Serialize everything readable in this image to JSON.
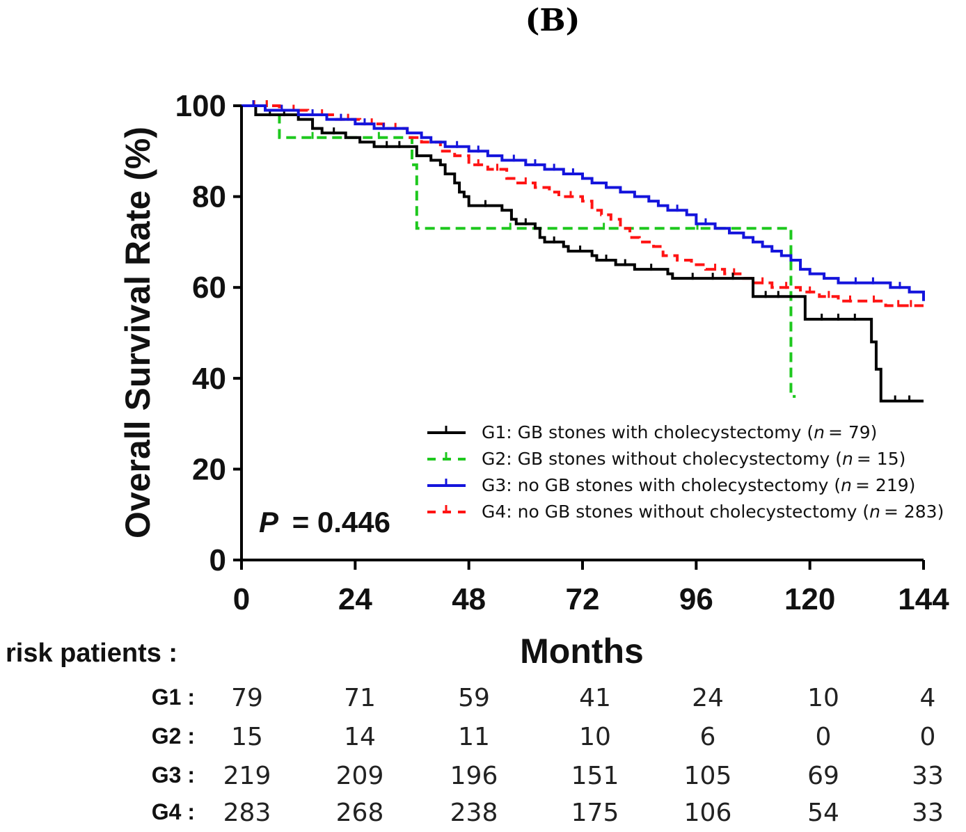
{
  "panel_label": "(B)",
  "chart_data": {
    "type": "line",
    "subtype": "kaplan-meier",
    "ylabel": "Overall Survival Rate (%)",
    "xlabel": "Months",
    "xlim": [
      0,
      144
    ],
    "ylim": [
      0,
      100
    ],
    "xticks": [
      0,
      24,
      48,
      72,
      96,
      120,
      144
    ],
    "yticks": [
      0,
      20,
      40,
      60,
      80,
      100
    ],
    "xtick_labels": [
      "0",
      "24",
      "48",
      "72",
      "96",
      "120",
      "144"
    ],
    "ytick_labels": [
      "0",
      "20",
      "40",
      "60",
      "80",
      "100"
    ],
    "annotation": {
      "p_label": "P",
      "p_value": "= 0.446"
    },
    "legend_position": "bottom-right",
    "series": [
      {
        "name": "G1",
        "color": "#000000",
        "dash": "solid",
        "legend_text": "G1: GB stones with cholecystectomy",
        "n_label": "n",
        "n_value": "= 79)",
        "steps": [
          [
            0,
            100
          ],
          [
            3,
            98
          ],
          [
            12,
            97
          ],
          [
            15,
            95
          ],
          [
            17,
            94
          ],
          [
            22,
            93
          ],
          [
            25,
            92
          ],
          [
            28,
            91
          ],
          [
            36,
            91
          ],
          [
            37,
            89
          ],
          [
            40,
            88
          ],
          [
            42,
            87
          ],
          [
            43,
            85
          ],
          [
            45,
            83
          ],
          [
            46,
            81
          ],
          [
            47,
            80
          ],
          [
            48,
            78
          ],
          [
            55,
            77
          ],
          [
            57,
            75
          ],
          [
            58,
            74
          ],
          [
            62,
            73
          ],
          [
            63,
            71
          ],
          [
            64,
            70
          ],
          [
            68,
            69
          ],
          [
            69,
            68
          ],
          [
            74,
            67
          ],
          [
            75,
            66
          ],
          [
            79,
            65
          ],
          [
            83,
            64
          ],
          [
            90,
            63
          ],
          [
            91,
            62
          ],
          [
            108,
            60
          ],
          [
            108,
            58
          ],
          [
            116,
            58
          ],
          [
            119,
            53
          ],
          [
            133,
            53
          ],
          [
            133,
            48
          ],
          [
            134,
            45
          ],
          [
            134,
            42
          ],
          [
            135,
            38
          ],
          [
            135,
            35
          ],
          [
            144,
            35
          ]
        ]
      },
      {
        "name": "G2",
        "color": "#1ec81e",
        "dash": "dashed",
        "legend_text": "G2: GB stones without cholecystectomy",
        "n_label": "n",
        "n_value": "= 15)",
        "steps": [
          [
            0,
            100
          ],
          [
            8,
            93
          ],
          [
            36,
            87
          ],
          [
            37,
            73
          ],
          [
            116,
            73
          ],
          [
            116,
            36
          ],
          [
            117,
            36
          ]
        ]
      },
      {
        "name": "G3",
        "color": "#1414dc",
        "dash": "solid",
        "legend_text": "G3: no GB stones with cholecystectomy",
        "n_label": "n",
        "n_value": "= 219)",
        "steps": [
          [
            0,
            100
          ],
          [
            5,
            99
          ],
          [
            12,
            98
          ],
          [
            18,
            97
          ],
          [
            24,
            96
          ],
          [
            28,
            95
          ],
          [
            32,
            95
          ],
          [
            35,
            94
          ],
          [
            38,
            93
          ],
          [
            40,
            92
          ],
          [
            43,
            91
          ],
          [
            48,
            90
          ],
          [
            52,
            89
          ],
          [
            55,
            88
          ],
          [
            60,
            87
          ],
          [
            64,
            86
          ],
          [
            68,
            85
          ],
          [
            72,
            84
          ],
          [
            74,
            83
          ],
          [
            77,
            82
          ],
          [
            80,
            81
          ],
          [
            83,
            80
          ],
          [
            86,
            79
          ],
          [
            88,
            78
          ],
          [
            90,
            77
          ],
          [
            94,
            76
          ],
          [
            96,
            74
          ],
          [
            100,
            73
          ],
          [
            103,
            72
          ],
          [
            106,
            71
          ],
          [
            108,
            70
          ],
          [
            110,
            69
          ],
          [
            112,
            68
          ],
          [
            114,
            67
          ],
          [
            116,
            66
          ],
          [
            118,
            64
          ],
          [
            120,
            63
          ],
          [
            123,
            62
          ],
          [
            126,
            61
          ],
          [
            137,
            60
          ],
          [
            141,
            59
          ],
          [
            144,
            57
          ]
        ]
      },
      {
        "name": "G4",
        "color": "#ff1414",
        "dash": "dashed",
        "legend_text": "G4: no GB stones without cholecystectomy",
        "n_label": "n",
        "n_value": "= 283)",
        "steps": [
          [
            0,
            100
          ],
          [
            8,
            99
          ],
          [
            14,
            98
          ],
          [
            20,
            97
          ],
          [
            25,
            96
          ],
          [
            30,
            95
          ],
          [
            35,
            93
          ],
          [
            38,
            92
          ],
          [
            42,
            90
          ],
          [
            45,
            89
          ],
          [
            48,
            87
          ],
          [
            52,
            86
          ],
          [
            56,
            84
          ],
          [
            58,
            83
          ],
          [
            62,
            82
          ],
          [
            65,
            81
          ],
          [
            67,
            80
          ],
          [
            72,
            79
          ],
          [
            74,
            77
          ],
          [
            76,
            76
          ],
          [
            78,
            75
          ],
          [
            80,
            73
          ],
          [
            82,
            71
          ],
          [
            84,
            70
          ],
          [
            87,
            69
          ],
          [
            89,
            67
          ],
          [
            92,
            66
          ],
          [
            95,
            65
          ],
          [
            98,
            64
          ],
          [
            102,
            63
          ],
          [
            106,
            62
          ],
          [
            108,
            61
          ],
          [
            112,
            60
          ],
          [
            118,
            59
          ],
          [
            122,
            58
          ],
          [
            126,
            57
          ],
          [
            131,
            57
          ],
          [
            136,
            56
          ],
          [
            144,
            56
          ]
        ]
      }
    ]
  },
  "risk_table": {
    "title": "risk patients :",
    "rows": [
      {
        "label": "G1 :",
        "values": [
          "79",
          "71",
          "59",
          "41",
          "24",
          "10",
          "4"
        ]
      },
      {
        "label": "G2 :",
        "values": [
          "15",
          "14",
          "11",
          "10",
          "6",
          "0",
          "0"
        ]
      },
      {
        "label": "G3 :",
        "values": [
          "219",
          "209",
          "196",
          "151",
          "105",
          "69",
          "33"
        ]
      },
      {
        "label": "G4 :",
        "values": [
          "283",
          "268",
          "238",
          "175",
          "106",
          "54",
          "33"
        ]
      }
    ]
  }
}
